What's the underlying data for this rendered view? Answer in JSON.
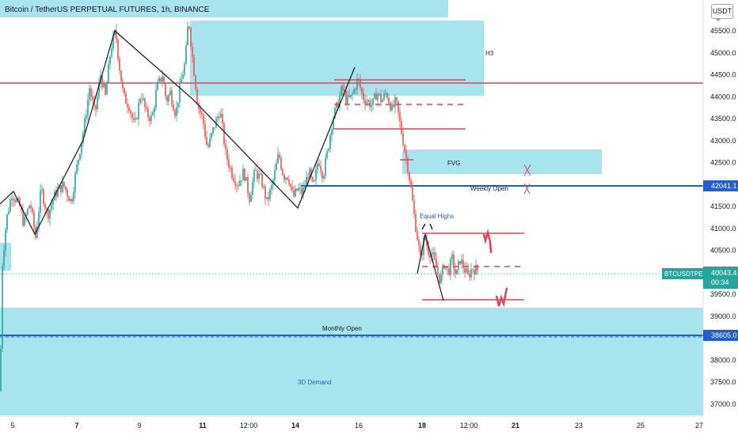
{
  "header": {
    "title": "Bitcoin / TetherUS PERPETUAL FUTURES, 1h, BINANCE"
  },
  "currency_badge": "USDT",
  "annotations": {
    "h3": "H3",
    "fvg": "FVG",
    "weekly_open": "Weekly Open",
    "equal_highs": "Equal Highs",
    "monthly_open": "Monthly Open",
    "demand_3d": "3D Demand"
  },
  "price_labels": {
    "weekly_open": "42041.1",
    "monthly_open": "38605.0",
    "symbol": "BTCUSDTPERP",
    "last": "40043.4",
    "countdown": "00:34"
  },
  "colors": {
    "up": "#26a69a",
    "down": "#ef5350",
    "zone": "#a8e4ee",
    "red_level": "#e0435c",
    "blue_level": "#1f5fd1",
    "last_price": "#26a69a",
    "trend_line": "#131722"
  },
  "chart_data": {
    "type": "candlestick",
    "title": "Bitcoin / TetherUS PERPETUAL FUTURES, 1h, BINANCE",
    "timeframe": "1h",
    "x_tick_labels": [
      "5",
      "7",
      "9",
      "11",
      "12:00",
      "14",
      "16",
      "18",
      "12:00",
      "21",
      "23",
      "25",
      "27"
    ],
    "y_tick_labels": [
      45500,
      45000,
      44500,
      44000,
      43500,
      43000,
      42500,
      42000,
      41500,
      41000,
      40500,
      40000,
      39500,
      39000,
      38500,
      38000,
      37500,
      37000
    ],
    "ylim": [
      36800,
      46100
    ],
    "levels": [
      {
        "name": "Weekly Open",
        "price": 42041.1,
        "color": "blue"
      },
      {
        "name": "Monthly Open",
        "price": 38605.0,
        "color": "blue"
      },
      {
        "name": "red level",
        "price": 44400,
        "color": "red"
      }
    ],
    "zones": [
      {
        "label": "H3",
        "from": 44150,
        "to": 45900
      },
      {
        "label": "FVG",
        "from": 42350,
        "to": 42850
      },
      {
        "label": "3D Demand",
        "from": 36800,
        "to": 39250
      }
    ],
    "last_price": 40043.4,
    "price_path": [
      [
        0,
        37300
      ],
      [
        3,
        40200
      ],
      [
        8,
        41200
      ],
      [
        15,
        41800
      ],
      [
        25,
        41500
      ],
      [
        30,
        41100
      ],
      [
        38,
        41600
      ],
      [
        45,
        40800
      ],
      [
        52,
        41900
      ],
      [
        60,
        41300
      ],
      [
        70,
        41800
      ],
      [
        80,
        42000
      ],
      [
        90,
        41600
      ],
      [
        95,
        42200
      ],
      [
        100,
        42700
      ],
      [
        107,
        43400
      ],
      [
        113,
        44200
      ],
      [
        120,
        43600
      ],
      [
        127,
        44500
      ],
      [
        133,
        44000
      ],
      [
        140,
        45100
      ],
      [
        146,
        45500
      ],
      [
        150,
        44800
      ],
      [
        156,
        44000
      ],
      [
        163,
        43800
      ],
      [
        170,
        43300
      ],
      [
        178,
        44100
      ],
      [
        185,
        43600
      ],
      [
        192,
        43500
      ],
      [
        198,
        44200
      ],
      [
        205,
        44500
      ],
      [
        210,
        43900
      ],
      [
        215,
        44100
      ],
      [
        222,
        43600
      ],
      [
        228,
        44300
      ],
      [
        234,
        44800
      ],
      [
        238,
        45800
      ],
      [
        243,
        44900
      ],
      [
        250,
        43800
      ],
      [
        256,
        43500
      ],
      [
        262,
        42800
      ],
      [
        270,
        43300
      ],
      [
        278,
        43700
      ],
      [
        285,
        42700
      ],
      [
        292,
        42300
      ],
      [
        300,
        42000
      ],
      [
        308,
        42300
      ],
      [
        315,
        41700
      ],
      [
        322,
        42300
      ],
      [
        330,
        42100
      ],
      [
        337,
        41600
      ],
      [
        344,
        42000
      ],
      [
        352,
        42700
      ],
      [
        358,
        42200
      ],
      [
        364,
        42200
      ],
      [
        370,
        41700
      ],
      [
        376,
        41900
      ],
      [
        382,
        41800
      ],
      [
        390,
        42300
      ],
      [
        396,
        41900
      ],
      [
        402,
        42600
      ],
      [
        408,
        42200
      ],
      [
        414,
        42800
      ],
      [
        420,
        43500
      ],
      [
        426,
        43800
      ],
      [
        432,
        44200
      ],
      [
        438,
        43900
      ],
      [
        444,
        44000
      ],
      [
        452,
        44400
      ],
      [
        458,
        44000
      ],
      [
        464,
        43900
      ],
      [
        470,
        43800
      ],
      [
        476,
        44100
      ],
      [
        482,
        43900
      ],
      [
        488,
        44100
      ],
      [
        495,
        43700
      ],
      [
        500,
        43900
      ],
      [
        505,
        43400
      ],
      [
        510,
        42900
      ],
      [
        515,
        42400
      ],
      [
        519,
        41900
      ],
      [
        523,
        41300
      ],
      [
        527,
        40800
      ],
      [
        531,
        40300
      ],
      [
        536,
        40800
      ],
      [
        541,
        40500
      ],
      [
        546,
        40400
      ],
      [
        551,
        40100
      ],
      [
        556,
        39800
      ],
      [
        561,
        40200
      ],
      [
        566,
        40000
      ],
      [
        571,
        40300
      ],
      [
        576,
        39900
      ],
      [
        581,
        40300
      ],
      [
        586,
        40100
      ],
      [
        591,
        39900
      ],
      [
        596,
        40100
      ],
      [
        603,
        40050
      ]
    ]
  }
}
